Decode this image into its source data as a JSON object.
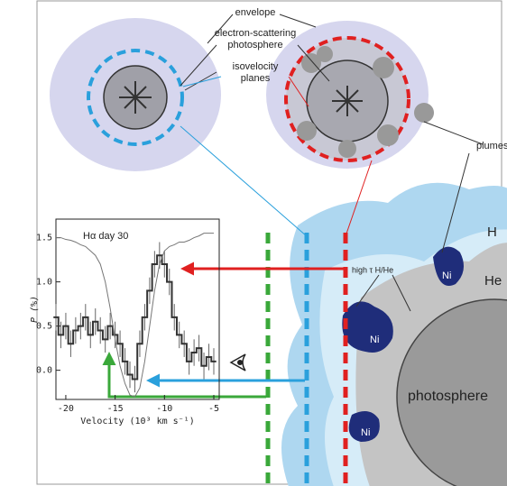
{
  "labels": {
    "envelope": "envelope",
    "photosphere_label": [
      "electron-scattering",
      "photosphere"
    ],
    "isovelocity": [
      "isovelocity",
      "planes"
    ],
    "plumes": "plumes",
    "H": "H",
    "He": "He",
    "high_tau": "high τ H/He",
    "ni": [
      "Ni",
      "Ni",
      "Ni"
    ],
    "photosphere": "photosphere"
  },
  "chart_data": {
    "type": "line",
    "annotation": "Hα day 30",
    "x_label": "Velocity (10³ km s⁻¹)",
    "y_label": "P (%)",
    "xlim": [
      -21,
      -4.45
    ],
    "ylim": [
      -0.33,
      1.71
    ],
    "xticks": [
      -20,
      -15,
      -10,
      -5
    ],
    "yticks": [
      {
        "value": 0,
        "label": "0.0"
      },
      {
        "value": 0.5,
        "label": "0.5"
      },
      {
        "value": 1,
        "label": "1.0"
      },
      {
        "value": 1.5,
        "label": "1.5"
      }
    ],
    "x": [
      -21,
      -20.5,
      -20,
      -19.5,
      -19,
      -18.5,
      -18,
      -17.5,
      -17,
      -16.5,
      -16,
      -15.5,
      -15,
      -14.5,
      -14,
      -13.5,
      -13,
      -12.5,
      -12,
      -11.5,
      -11,
      -10.5,
      -10,
      -9.5,
      -9,
      -8.5,
      -8,
      -7.5,
      -7,
      -6.5,
      -6,
      -5.5,
      -5
    ],
    "series": [
      {
        "color": "#333333",
        "step": true,
        "values": [
          0.6,
          0.4,
          0.5,
          0.3,
          0.45,
          0.5,
          0.6,
          0.4,
          0.55,
          0.45,
          0.35,
          0.5,
          0.4,
          0.3,
          0.1,
          -0.05,
          -0.1,
          0.3,
          0.6,
          0.9,
          1.2,
          1.3,
          1.2,
          1.0,
          0.6,
          0.4,
          0.3,
          0.1,
          0.2,
          0.25,
          0.05,
          0.15,
          0.1
        ],
        "errors": [
          0.15,
          0.15,
          0.15,
          0.15,
          0.15,
          0.15,
          0.15,
          0.15,
          0.15,
          0.15,
          0.15,
          0.15,
          0.15,
          0.15,
          0.15,
          0.15,
          0.15,
          0.15,
          0.15,
          0.15,
          0.15,
          0.15,
          0.15,
          0.15,
          0.15,
          0.15,
          0.15,
          0.15,
          0.15,
          0.15,
          0.15,
          0.15,
          0.15
        ]
      },
      {
        "color": "#777777",
        "values": [
          1.5,
          1.5,
          1.48,
          1.47,
          1.45,
          1.42,
          1.4,
          1.35,
          1.3,
          1.2,
          1.0,
          0.7,
          0.35,
          0.05,
          -0.15,
          -0.28,
          -0.3,
          -0.2,
          0.1,
          0.5,
          0.9,
          1.2,
          1.35,
          1.4,
          1.42,
          1.45,
          1.45,
          1.47,
          1.5,
          1.52,
          1.55,
          1.55,
          1.55
        ]
      }
    ]
  }
}
